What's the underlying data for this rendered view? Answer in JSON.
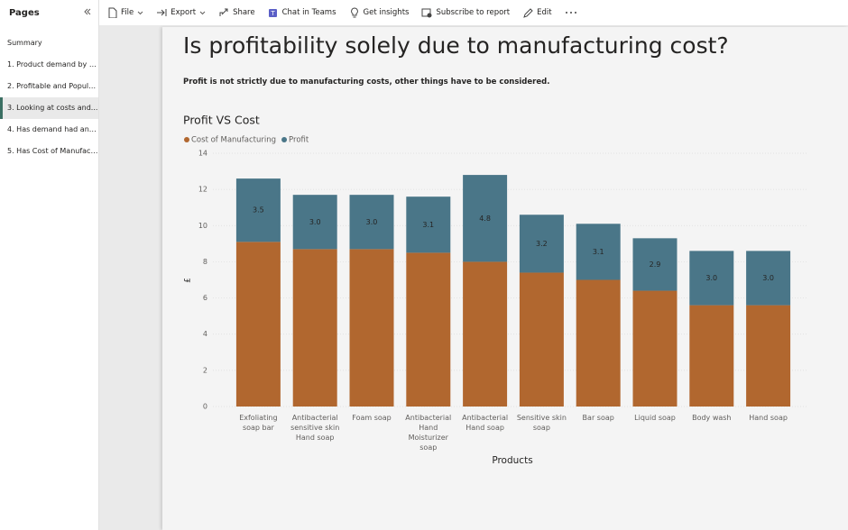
{
  "sidebar": {
    "title": "Pages",
    "pages": [
      "Summary",
      "1. Product demand by Y...",
      "2. Profitable and Popula...",
      "3. Looking at costs and...",
      "4. Has demand had any ...",
      "5. Has Cost of Manufact..."
    ]
  },
  "toolbar": {
    "items": [
      "File",
      "Export",
      "Share",
      "Chat in Teams",
      "Get insights",
      "Subscribe to report",
      "Edit"
    ]
  },
  "report": {
    "title": "Is profitability solely due to manufacturing cost?",
    "subtitle": "Profit is not strictly due to manufacturing costs, other things have to be considered."
  },
  "chart_data": {
    "type": "bar",
    "stacked": true,
    "title": "Profit VS Cost",
    "x_label": "Products",
    "y_label": "£",
    "categories": [
      "Exfoliating soap bar",
      "Antibacterial sensitive skin Hand soap",
      "Foam soap",
      "Antibacterial Hand Moisturizer soap",
      "Antibacterial Hand soap",
      "Sensitive skin soap",
      "Bar soap",
      "Liquid soap",
      "Body wash",
      "Hand soap"
    ],
    "series": [
      {
        "name": "Cost of Manufacturing",
        "color": "#b1672f",
        "values": [
          9.1,
          8.7,
          8.7,
          8.5,
          8.0,
          7.4,
          7.0,
          6.4,
          5.6,
          5.6
        ]
      },
      {
        "name": "Profit",
        "color": "#4a7688",
        "values": [
          3.5,
          3.0,
          3.0,
          3.1,
          4.8,
          3.2,
          3.1,
          2.9,
          3.0,
          3.0
        ],
        "value_labels": [
          "3.5",
          "3.0",
          "3.0",
          "3.1",
          "4.8",
          "3.2",
          "3.1",
          "2.9",
          "3.0",
          "3.0"
        ]
      }
    ],
    "ylim": [
      0,
      14
    ],
    "yticks": [
      0,
      2,
      4,
      6,
      8,
      10,
      12,
      14
    ],
    "grid": true
  }
}
